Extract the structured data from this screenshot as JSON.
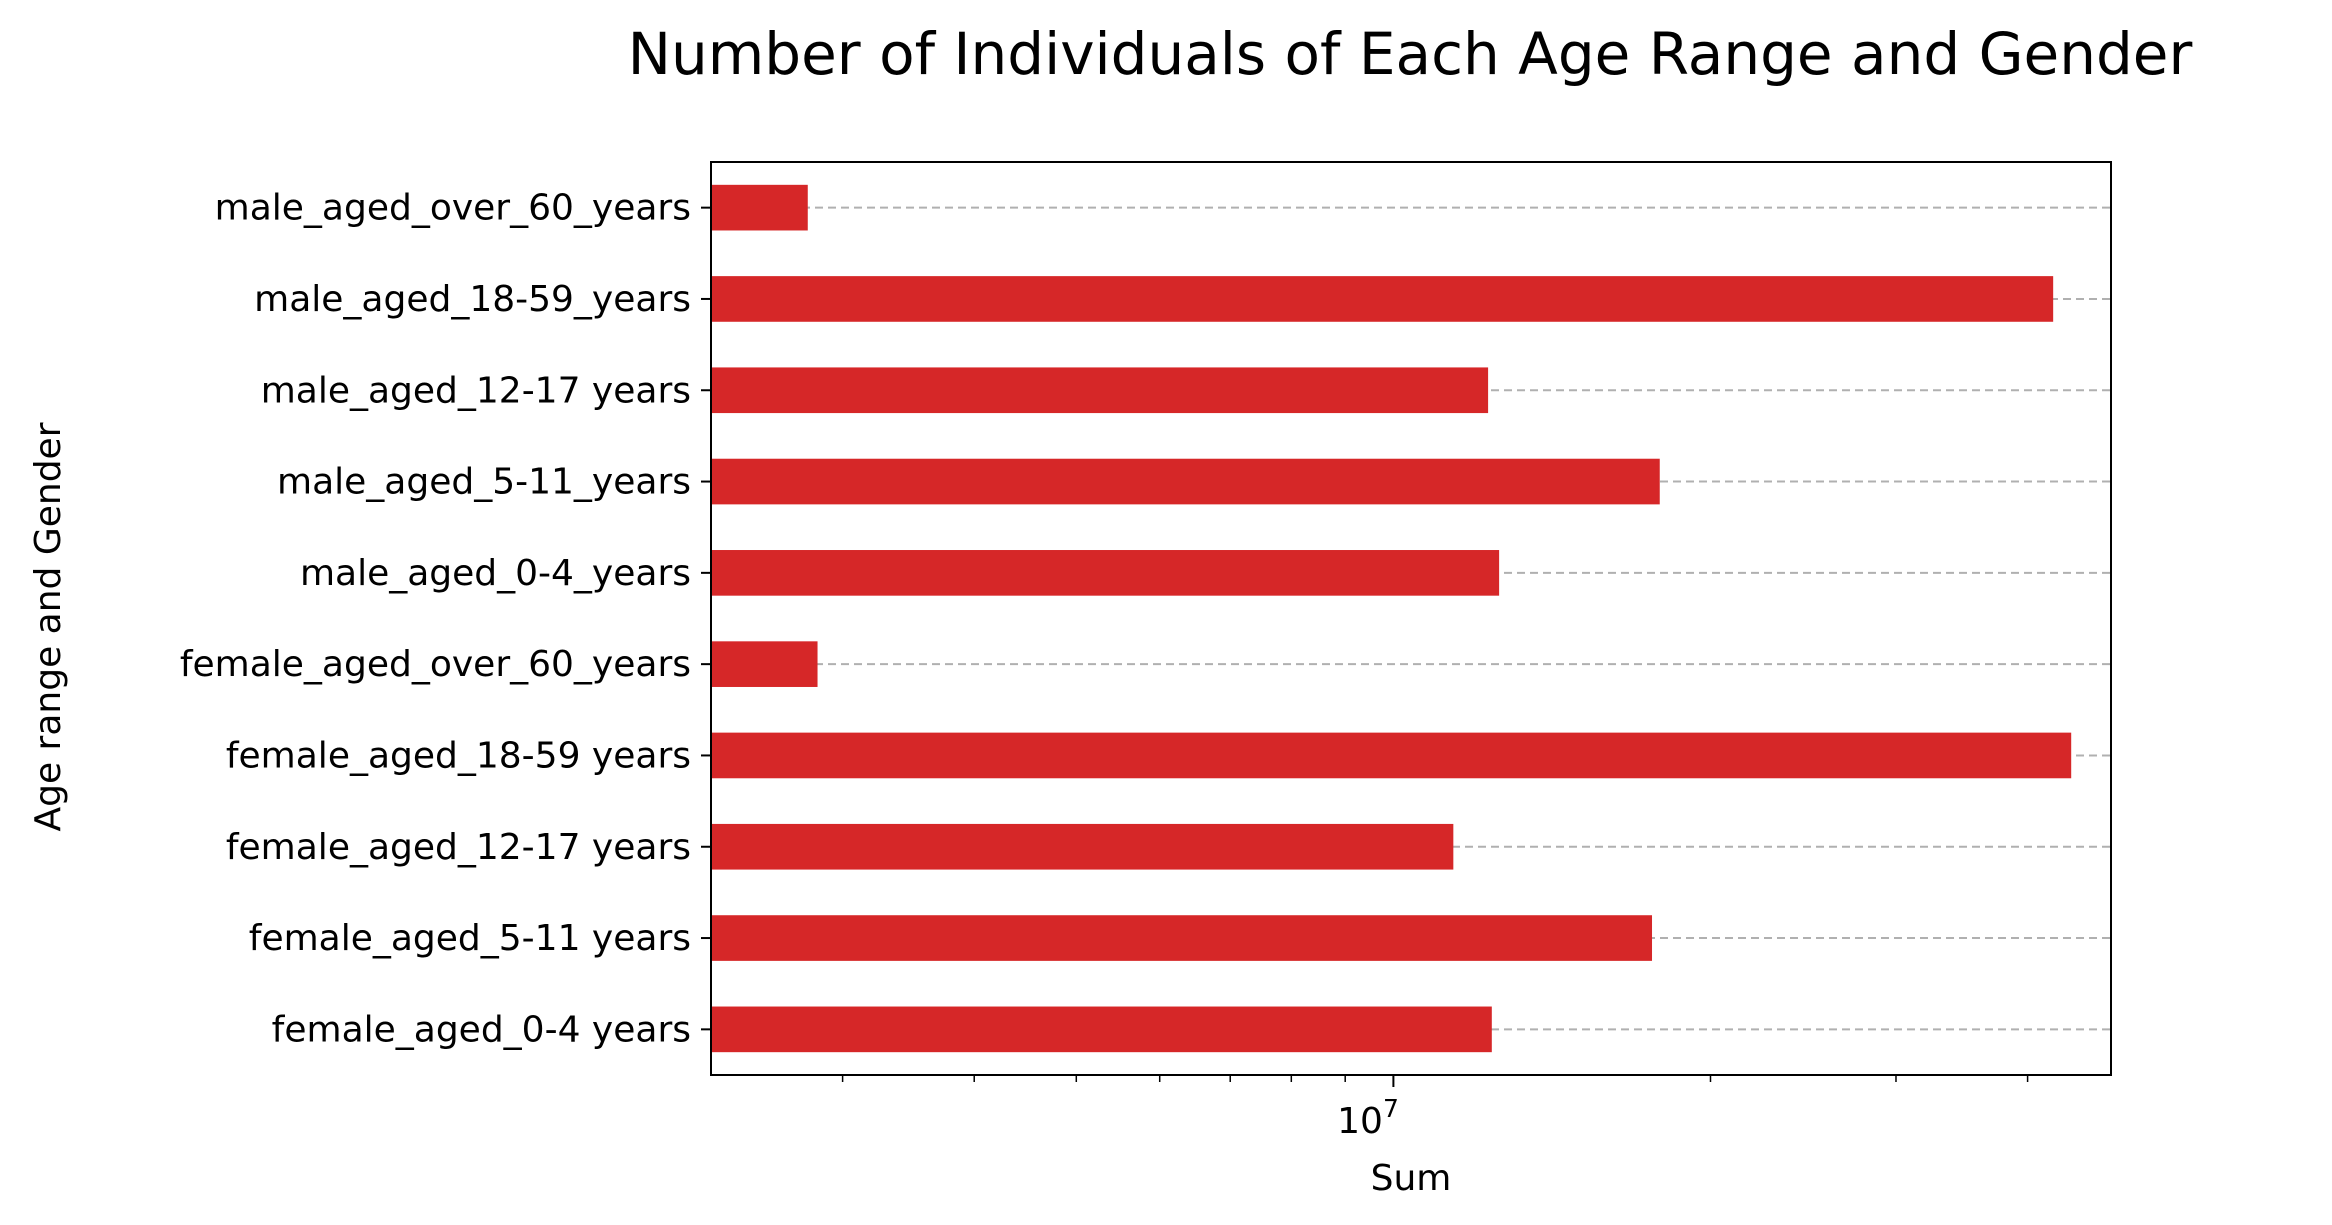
{
  "chart_data": {
    "type": "bar",
    "orientation": "horizontal",
    "title": "Number of Individuals of Each Age Range and Gender",
    "xlabel": "Sum",
    "ylabel": "Age range and Gender",
    "x_scale": "log",
    "x_major_tick_label": {
      "base": "10",
      "exponent": "7",
      "value": 10000000
    },
    "xlim": [
      2250000,
      48000000
    ],
    "grid": {
      "axis": "y",
      "style": "dashed",
      "color": "#b0b0b0"
    },
    "bar_color": "#d62728",
    "categories": [
      "female_aged_0-4 years",
      "female_aged_5-11 years",
      "female_aged_12-17 years",
      "female_aged_18-59 years",
      "female_aged_over_60_years",
      "male_aged_0-4_years",
      "male_aged_5-11_years",
      "male_aged_12-17 years",
      "male_aged_18-59_years",
      "male_aged_over_60_years"
    ],
    "values": [
      12400000,
      17600000,
      11400000,
      44000000,
      2840000,
      12600000,
      17900000,
      12300000,
      42300000,
      2780000
    ]
  }
}
